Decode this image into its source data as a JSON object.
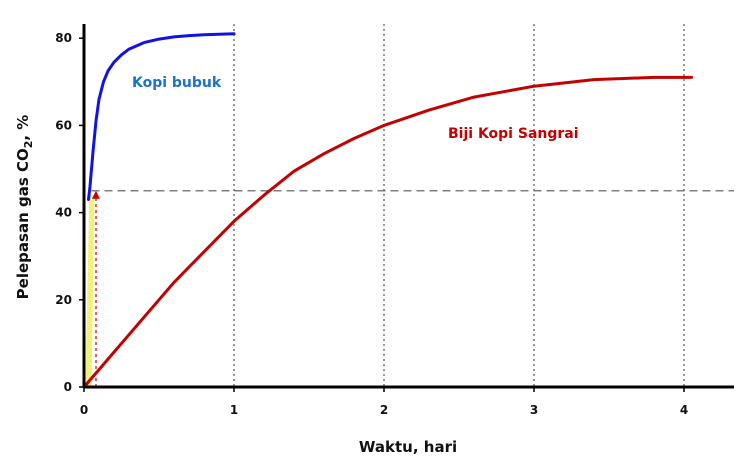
{
  "chart_data": {
    "type": "line",
    "title": "",
    "xlabel": "Waktu, hari",
    "ylabel_main": "Pelepasan gas CO",
    "ylabel_sub": "2",
    "ylabel_suffix": ", %",
    "xlim": [
      0,
      4.3
    ],
    "ylim": [
      0,
      82
    ],
    "xticks": [
      0,
      1,
      2,
      3,
      4
    ],
    "xtick_labels": [
      "0",
      "1",
      "2",
      "3",
      "4"
    ],
    "yticks": [
      0,
      20,
      40,
      60,
      80
    ],
    "ytick_labels": [
      "0",
      "20",
      "40",
      "60",
      "80"
    ],
    "vertical_gridlines_at": [
      1,
      2,
      3,
      4
    ],
    "reference_line_y": 45,
    "reference_marker_x": 0.08,
    "series": [
      {
        "name": "Kopi bubuk",
        "color": "#1212e8",
        "label_color": "#1a73c8",
        "x": [
          0.03,
          0.04,
          0.06,
          0.08,
          0.1,
          0.13,
          0.16,
          0.2,
          0.25,
          0.3,
          0.4,
          0.5,
          0.6,
          0.7,
          0.8,
          0.9,
          1.0
        ],
        "y": [
          43,
          46,
          54,
          61,
          66,
          70,
          72.5,
          74.5,
          76.2,
          77.5,
          79,
          79.8,
          80.3,
          80.6,
          80.8,
          80.9,
          81
        ]
      },
      {
        "name": "Biji Kopi Sangrai",
        "color": "#c40000",
        "label_color": "#c40000",
        "x": [
          0,
          0.1,
          0.2,
          0.3,
          0.4,
          0.5,
          0.6,
          0.7,
          0.8,
          0.9,
          1.0,
          1.2,
          1.4,
          1.6,
          1.8,
          2.0,
          2.3,
          2.6,
          3.0,
          3.4,
          3.8,
          4.05
        ],
        "y": [
          0,
          4,
          8,
          12,
          16,
          20,
          24,
          27.5,
          31,
          34.5,
          38,
          44,
          49.5,
          53.5,
          57,
          60,
          63.5,
          66.5,
          69,
          70.5,
          71,
          71
        ]
      }
    ]
  }
}
